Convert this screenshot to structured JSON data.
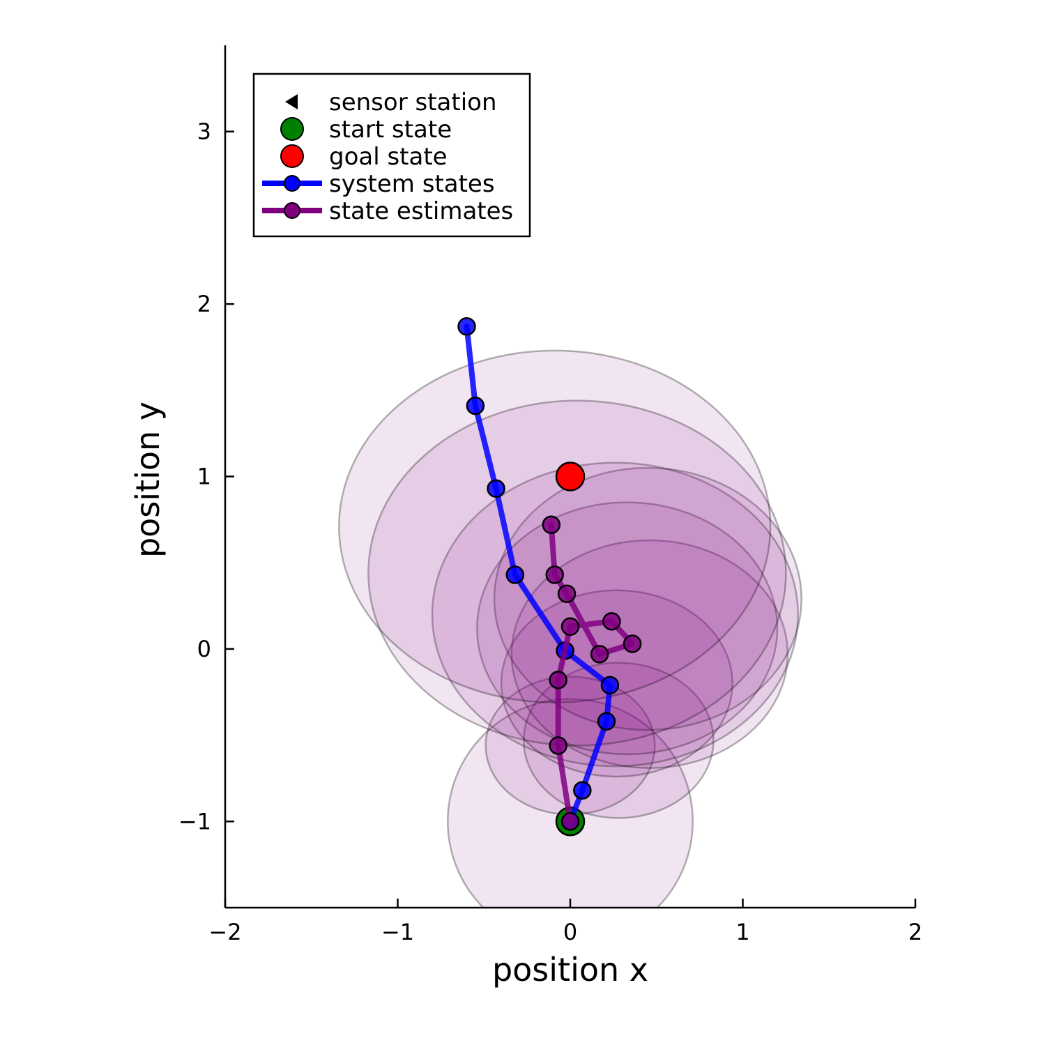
{
  "chart_data": {
    "type": "scatter",
    "title": "",
    "xlabel": "position x",
    "ylabel": "position y",
    "xlim": [
      -2,
      2
    ],
    "ylim": [
      -1.5,
      3.5
    ],
    "xticks": [
      -2,
      -1,
      0,
      1,
      2
    ],
    "xtick_labels": [
      "−2",
      "−1",
      "0",
      "1",
      "2"
    ],
    "yticks": [
      -1,
      0,
      1,
      2,
      3
    ],
    "ytick_labels": [
      "−1",
      "0",
      "1",
      "2",
      "3"
    ],
    "legend_position": "top-left",
    "legend": [
      {
        "label": "sensor station",
        "marker": "triangle-left",
        "color": "#000000"
      },
      {
        "label": "start state",
        "marker": "circle",
        "color": "#008000"
      },
      {
        "label": "goal state",
        "marker": "circle",
        "color": "#ff0000"
      },
      {
        "label": "system states",
        "marker": "circle-line",
        "color": "#0000ff"
      },
      {
        "label": "state estimates",
        "marker": "circle-line",
        "color": "#800080"
      }
    ],
    "colors": {
      "start": "#008000",
      "goal": "#ff0000",
      "system": "#0000ff",
      "estimate": "#800080",
      "uncertainty_fill": "#800080"
    },
    "start_state": {
      "x": 0.0,
      "y": -1.0
    },
    "goal_state": {
      "x": 0.0,
      "y": 1.0
    },
    "system_states": [
      {
        "x": 0.0,
        "y": -1.0
      },
      {
        "x": 0.07,
        "y": -0.82
      },
      {
        "x": 0.21,
        "y": -0.42
      },
      {
        "x": 0.23,
        "y": -0.21
      },
      {
        "x": -0.03,
        "y": -0.01
      },
      {
        "x": -0.32,
        "y": 0.43
      },
      {
        "x": -0.43,
        "y": 0.93
      },
      {
        "x": -0.55,
        "y": 1.41
      },
      {
        "x": -0.6,
        "y": 1.87
      }
    ],
    "state_estimates": [
      {
        "x": 0.0,
        "y": -1.0
      },
      {
        "x": -0.07,
        "y": -0.56
      },
      {
        "x": -0.07,
        "y": -0.18
      },
      {
        "x": 0.0,
        "y": 0.13
      },
      {
        "x": 0.24,
        "y": 0.16
      },
      {
        "x": 0.36,
        "y": 0.03
      },
      {
        "x": 0.17,
        "y": -0.03
      },
      {
        "x": -0.02,
        "y": 0.32
      },
      {
        "x": -0.09,
        "y": 0.43
      },
      {
        "x": -0.11,
        "y": 0.72
      }
    ],
    "uncertainty_ellipses": [
      {
        "cx": 0.0,
        "cy": -1.0,
        "rx": 0.71,
        "ry": 0.71
      },
      {
        "cx": 0.28,
        "cy": -0.53,
        "rx": 0.55,
        "ry": 0.45
      },
      {
        "cx": 0.0,
        "cy": -0.56,
        "rx": 0.49,
        "ry": 0.4
      },
      {
        "cx": 0.27,
        "cy": -0.2,
        "rx": 0.67,
        "ry": 0.54
      },
      {
        "cx": 0.46,
        "cy": -0.03,
        "rx": 0.8,
        "ry": 0.66
      },
      {
        "cx": 0.33,
        "cy": 0.12,
        "rx": 0.87,
        "ry": 0.73
      },
      {
        "cx": 0.45,
        "cy": 0.29,
        "rx": 0.89,
        "ry": 0.76
      },
      {
        "cx": 0.26,
        "cy": 0.2,
        "rx": 1.06,
        "ry": 0.88
      },
      {
        "cx": 0.04,
        "cy": 0.44,
        "rx": 1.21,
        "ry": 1.0
      },
      {
        "cx": -0.09,
        "cy": 0.71,
        "rx": 1.25,
        "ry": 1.02
      }
    ]
  }
}
